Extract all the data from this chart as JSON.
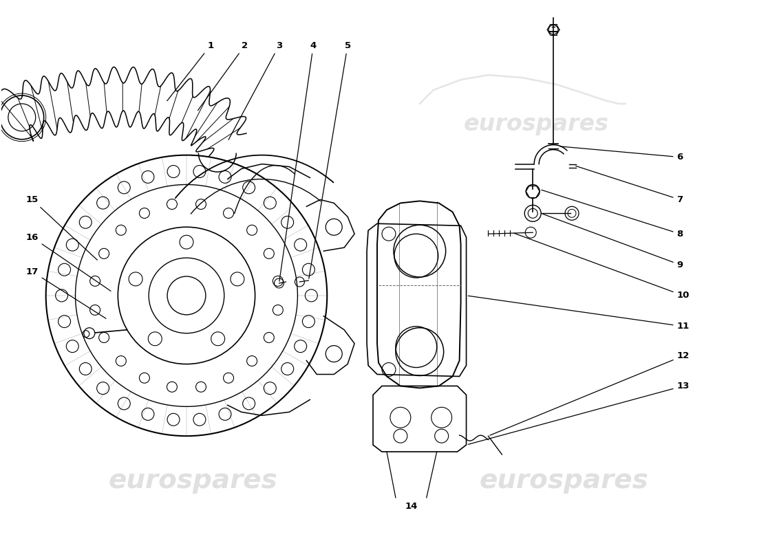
{
  "background_color": "#ffffff",
  "line_color": "#000000",
  "watermark_color": "#cccccc",
  "watermark_text": "eurospares",
  "fig_width": 11.0,
  "fig_height": 8.0,
  "dpi": 100
}
